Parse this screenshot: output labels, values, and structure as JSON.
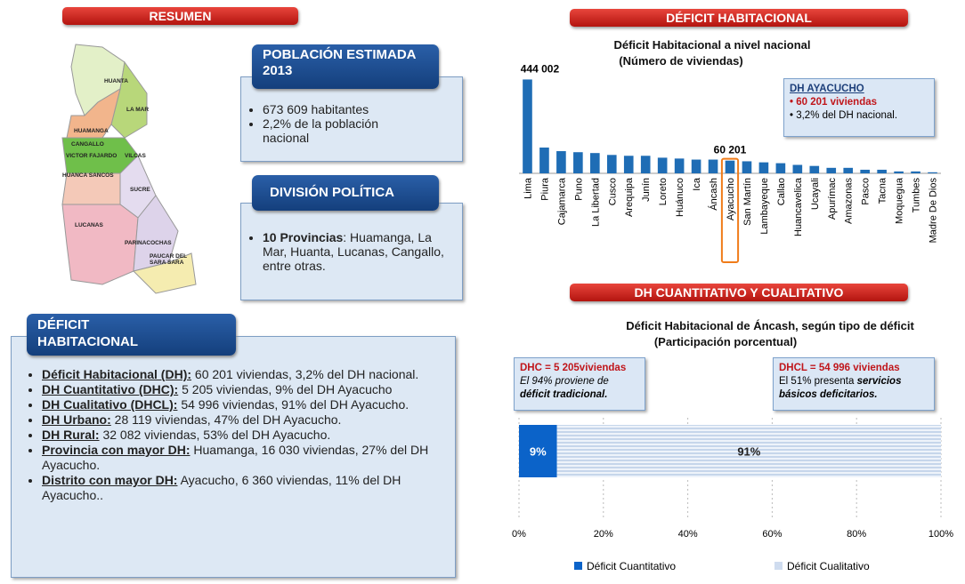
{
  "resumen": {
    "header": "RESUMEN",
    "map_labels": [
      "HUANTA",
      "LA MAR",
      "HUAMANGA",
      "CANGALLO",
      "VICTOR FAJARDO",
      "HUANCA SANCOS",
      "VILCAS",
      "SUCRE",
      "LUCANAS",
      "PARINACOCHAS",
      "PAUCAR DEL SARA SARA"
    ],
    "poblacion": {
      "title": "POBLACIÓN ESTIMADA 2013",
      "items": [
        "673 609 habitantes",
        "2,2% de la población nacional"
      ]
    },
    "division": {
      "title": "DIVISIÓN POLÍTICA",
      "label": "10 Provincias",
      "text": ":  Huamanga, La Mar, Huanta, Lucanas, Cangallo, entre otras."
    },
    "deficit": {
      "title": "DÉFICIT HABITACIONAL",
      "items": [
        {
          "label": "Déficit Habitacional  (DH):",
          "text": " 60 201 viviendas, 3,2% del DH nacional."
        },
        {
          "label": "DH Cuantitativo (DHC):",
          "text": " 5 205 viviendas, 9%  del DH Ayacucho"
        },
        {
          "label": "DH Cualitativo (DHCL):",
          "text": " 54 996 viviendas, 91%  del DH Ayacucho."
        },
        {
          "label": "DH Urbano:",
          "text": " 28 119 viviendas, 47%  del DH Ayacucho."
        },
        {
          "label": "DH Rural:",
          "text": " 32 082 viviendas, 53%  del DH Ayacucho."
        },
        {
          "label": "Provincia con mayor DH:",
          "text": " Huamanga, 16 030 viviendas, 27% del DH Ayacucho."
        },
        {
          "label": "Distrito con mayor DH:",
          "text": " Ayacucho, 6 360 viviendas, 11%  del DH Ayacucho.."
        }
      ]
    }
  },
  "chart_data": [
    {
      "type": "bar",
      "header": "DÉFICIT HABITACIONAL",
      "title": "Déficit Habitacional a nivel nacional",
      "subtitle": "(Número de viviendas)",
      "categories": [
        "Lima",
        "Piura",
        "Cajamarca",
        "Puno",
        "La Libertad",
        "Cusco",
        "Arequipa",
        "Junín",
        "Loreto",
        "Huánuco",
        "Ica",
        "Áncash",
        "Ayacucho",
        "San Martín",
        "Lambayeque",
        "Callao",
        "Huancavelica",
        "Ucayali",
        "Apurímac",
        "Amazonas",
        "Pasco",
        "Tacna",
        "Moquegua",
        "Tumbes",
        "Madre De Dios"
      ],
      "values": [
        444002,
        122000,
        105000,
        100000,
        96000,
        87000,
        83000,
        83000,
        74000,
        70000,
        65000,
        65000,
        60201,
        57000,
        52000,
        48000,
        40000,
        35000,
        26000,
        26000,
        17000,
        17000,
        9000,
        9000,
        5000
      ],
      "value_labels": [
        "444 002",
        null,
        null,
        null,
        null,
        null,
        null,
        null,
        null,
        null,
        null,
        null,
        "60 201",
        null,
        null,
        null,
        null,
        null,
        null,
        null,
        null,
        null,
        null,
        null,
        null
      ],
      "color": "#1f6db5",
      "highlight": {
        "category": "Ayacucho",
        "color": "#f07c1a"
      },
      "ylim": [
        0,
        450000
      ],
      "annotation": {
        "title": "DH AYACUCHO",
        "lines": [
          "• 60 201 viviendas",
          "• 3,2% del DH nacional."
        ]
      }
    },
    {
      "type": "stacked-bar-horizontal",
      "header": "DH CUANTITATIVO Y CUALITATIVO",
      "title": "Déficit Habitacional de Áncash, según tipo de déficit",
      "subtitle": "(Participación porcentual)",
      "series": [
        {
          "name": "Déficit Cuantitativo",
          "color": "#0b63c9",
          "values": [
            9
          ],
          "value_labels": [
            "9%"
          ]
        },
        {
          "name": "Déficit Cualitativo",
          "color": "#cfdcef",
          "values": [
            91
          ],
          "value_labels": [
            "91%"
          ]
        }
      ],
      "xlim": [
        0,
        100
      ],
      "xticks": [
        {
          "value": 0,
          "label": "0%"
        },
        {
          "value": 20,
          "label": "20%"
        },
        {
          "value": 40,
          "label": "40%"
        },
        {
          "value": 60,
          "label": "60%"
        },
        {
          "value": 80,
          "label": "80%"
        },
        {
          "value": 100,
          "label": "100%"
        }
      ],
      "grid": true,
      "annotations": [
        {
          "title": "DHC = 5 205viviendas",
          "parts": [
            "El 94%",
            " proviene de ",
            "déficit tradicional."
          ]
        },
        {
          "title": "DHCL = 54 996 viviendas",
          "parts": [
            "El 51% presenta ",
            "servicios básicos deficitarios."
          ]
        }
      ]
    }
  ]
}
